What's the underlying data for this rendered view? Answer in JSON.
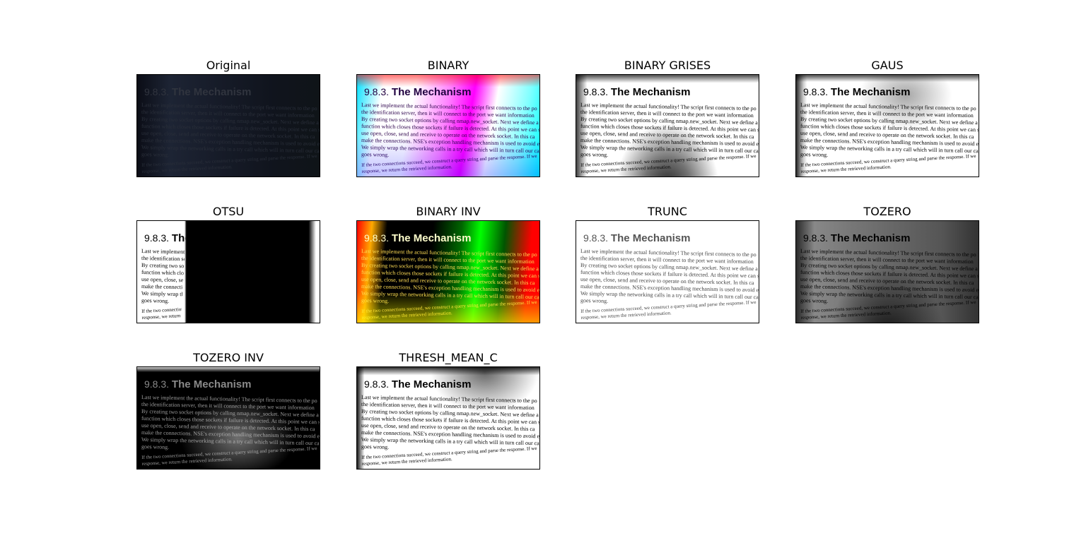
{
  "panels": [
    {
      "title": "Original",
      "style": "original"
    },
    {
      "title": "BINARY",
      "style": "binary"
    },
    {
      "title": "BINARY GRISES",
      "style": "binary-grises"
    },
    {
      "title": "GAUS",
      "style": "gaus"
    },
    {
      "title": "OTSU",
      "style": "otsu"
    },
    {
      "title": "BINARY INV",
      "style": "binary-inv"
    },
    {
      "title": "TRUNC",
      "style": "trunc"
    },
    {
      "title": "TOZERO",
      "style": "tozero"
    },
    {
      "title": "TOZERO INV",
      "style": "tozero-inv"
    },
    {
      "title": "THRESH_MEAN_C",
      "style": "thresh-mean-c"
    }
  ],
  "page_text": {
    "section": "9.8.3.",
    "heading": "The Mechanism",
    "lines": [
      "Last we implement the actual functionality! The script first connects to the po",
      "the identification server, then it will connect to the port we want information",
      "By creating two socket options by calling nmap.new_socket. Next we define a",
      "function which closes those sockets if failure is detected. At this point we can safely",
      "use open, close, send and receive to operate on the network socket. In this ca",
      "make the connections. NSE's exception handling mechanism is used to avoid excess",
      "We simply wrap the networking calls in a try call which will in turn call our cat",
      "goes wrong."
    ],
    "tail_lines": [
      "If the two connections succeed, we construct a query string and parse the response. If we",
      "response, we return the retrieved information."
    ]
  }
}
